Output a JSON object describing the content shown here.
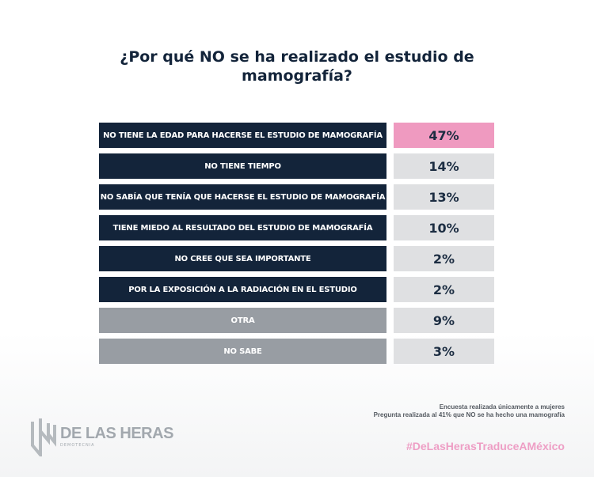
{
  "title": "¿Por qué NO se ha realizado el estudio de mamografía?",
  "chart_data": {
    "type": "table",
    "title": "¿Por qué NO se ha realizado el estudio de mamografía?",
    "categories": [
      "NO TIENE LA EDAD PARA HACERSE EL ESTUDIO DE MAMOGRAFÍA",
      "NO TIENE TIEMPO",
      "NO SABÍA QUE TENÍA QUE HACERSE EL ESTUDIO DE MAMOGRAFÍA",
      "TIENE MIEDO AL RESULTADO DEL ESTUDIO DE MAMOGRAFÍA",
      "NO CREE QUE SEA IMPORTANTE",
      "POR LA EXPOSICIÓN A LA RADIACIÓN EN EL ESTUDIO",
      "OTRA",
      "NO SABE"
    ],
    "values": [
      47,
      14,
      13,
      10,
      2,
      2,
      9,
      3
    ],
    "labels": [
      "47%",
      "14%",
      "13%",
      "10%",
      "2%",
      "2%",
      "9%",
      "3%"
    ]
  },
  "colors": {
    "label_dark": "#13243a",
    "label_gray": "#989da3",
    "highlight": "#ef9ac0",
    "value_bg": "#dfe0e2"
  },
  "notes": [
    "Encuesta realizada únicamente a mujeres",
    "Pregunta realizada al 41% que NO se ha hecho una mamografía"
  ],
  "hashtag": "#DeLasHerasTraduceAMéxico",
  "logo": {
    "name": "DE LAS HERAS",
    "sub": "DEMOTECNIA"
  }
}
